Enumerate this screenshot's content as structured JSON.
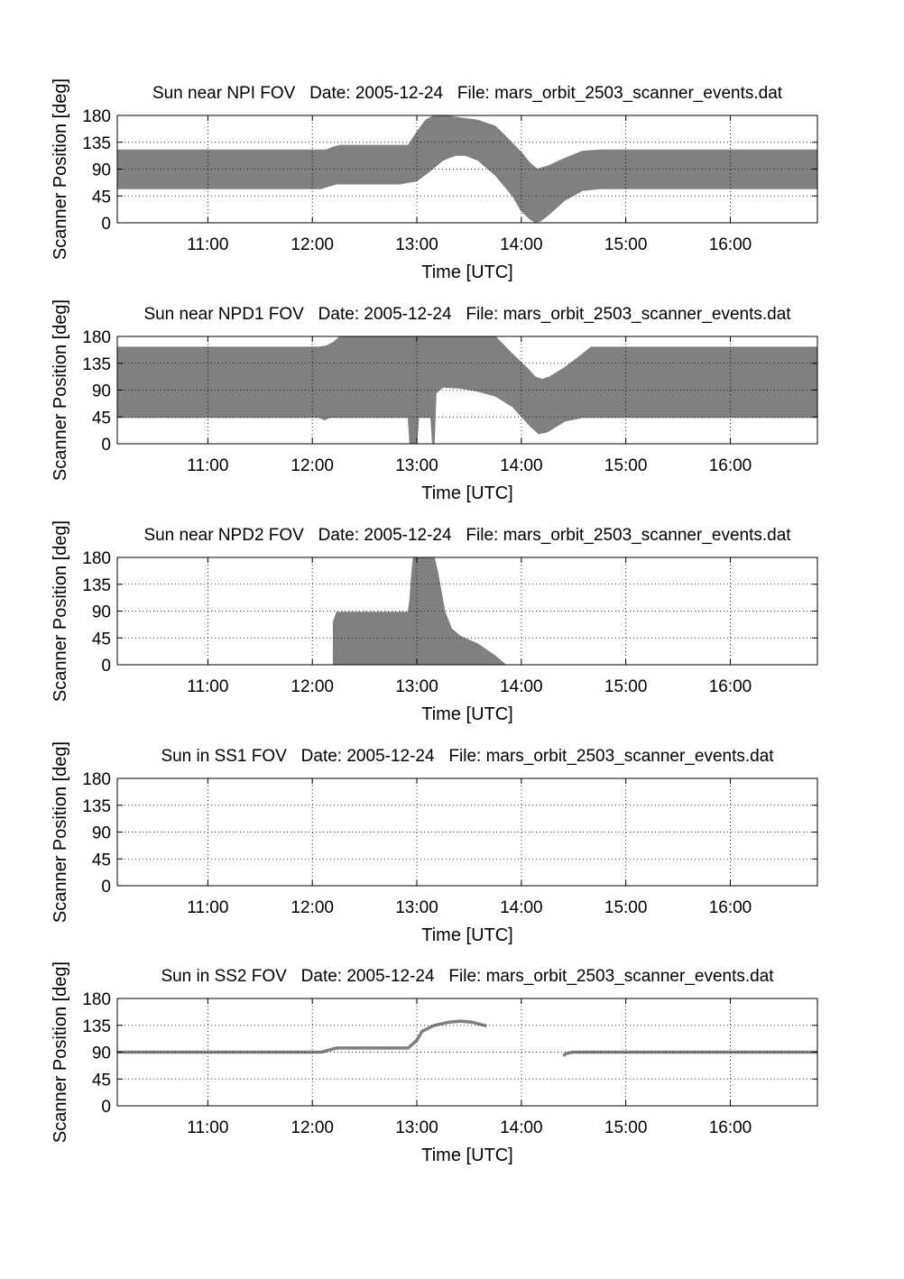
{
  "chart_data": [
    {
      "type": "area",
      "title": "Sun near NPI FOV   Date: 2005-12-24   File: mars_orbit_2503_scanner_events.dat",
      "xlabel": "Time [UTC]",
      "ylabel": "Scanner Position [deg]",
      "xlim": [
        "10:08",
        "16:50"
      ],
      "ylim": [
        0,
        180
      ],
      "xticks": [
        "11:00",
        "12:00",
        "13:00",
        "14:00",
        "15:00",
        "16:00"
      ],
      "yticks": [
        "0",
        "45",
        "90",
        "135",
        "180"
      ],
      "grid": true,
      "fill_color": "#808080",
      "bands": [
        {
          "upper": [
            [
              "10:08",
              122
            ],
            [
              "12:08",
              122
            ],
            [
              "12:12",
              127
            ],
            [
              "12:16",
              130
            ],
            [
              "12:55",
              130
            ],
            [
              "13:00",
              152
            ],
            [
              "13:05",
              172
            ],
            [
              "13:10",
              180
            ],
            [
              "13:20",
              178
            ],
            [
              "13:35",
              172
            ],
            [
              "13:45",
              162
            ],
            [
              "13:50",
              148
            ],
            [
              "14:00",
              118
            ],
            [
              "14:05",
              100
            ],
            [
              "14:09",
              90
            ],
            [
              "14:15",
              95
            ],
            [
              "14:25",
              108
            ],
            [
              "14:35",
              120
            ],
            [
              "14:45",
              122
            ],
            [
              "16:50",
              122
            ]
          ],
          "lower": [
            [
              "10:08",
              57
            ],
            [
              "12:05",
              57
            ],
            [
              "12:10",
              62
            ],
            [
              "12:14",
              65
            ],
            [
              "12:50",
              65
            ],
            [
              "13:00",
              70
            ],
            [
              "13:08",
              88
            ],
            [
              "13:15",
              105
            ],
            [
              "13:22",
              113
            ],
            [
              "13:28",
              113
            ],
            [
              "13:35",
              105
            ],
            [
              "13:45",
              80
            ],
            [
              "13:55",
              45
            ],
            [
              "14:00",
              20
            ],
            [
              "14:05",
              6
            ],
            [
              "14:08",
              1
            ],
            [
              "14:11",
              3
            ],
            [
              "14:15",
              12
            ],
            [
              "14:25",
              38
            ],
            [
              "14:35",
              54
            ],
            [
              "14:45",
              57
            ],
            [
              "16:50",
              57
            ]
          ]
        }
      ]
    },
    {
      "type": "area",
      "title": "Sun near NPD1 FOV   Date: 2005-12-24   File: mars_orbit_2503_scanner_events.dat",
      "xlabel": "Time [UTC]",
      "ylabel": "Scanner Position [deg]",
      "xlim": [
        "10:08",
        "16:50"
      ],
      "ylim": [
        0,
        180
      ],
      "xticks": [
        "11:00",
        "12:00",
        "13:00",
        "14:00",
        "15:00",
        "16:00"
      ],
      "yticks": [
        "0",
        "45",
        "90",
        "135",
        "180"
      ],
      "grid": true,
      "fill_color": "#808080",
      "bands": [
        {
          "upper": [
            [
              "10:08",
              162
            ],
            [
              "12:03",
              162
            ],
            [
              "12:08",
              164
            ],
            [
              "12:12",
              170
            ],
            [
              "12:16",
              180
            ],
            [
              "13:45",
              180
            ],
            [
              "13:55",
              150
            ],
            [
              "14:03",
              128
            ],
            [
              "14:08",
              112
            ],
            [
              "14:12",
              108
            ],
            [
              "14:16",
              112
            ],
            [
              "14:25",
              128
            ],
            [
              "14:35",
              150
            ],
            [
              "14:40",
              162
            ],
            [
              "16:50",
              162
            ]
          ],
          "lower": [
            [
              "10:08",
              44
            ],
            [
              "12:04",
              44
            ],
            [
              "12:07",
              40
            ],
            [
              "12:10",
              44
            ],
            [
              "12:55",
              44
            ],
            [
              "12:56",
              0
            ],
            [
              "13:00",
              0
            ],
            [
              "13:01",
              44
            ],
            [
              "13:08",
              44
            ],
            [
              "13:09",
              0
            ],
            [
              "13:10",
              0
            ],
            [
              "13:11",
              85
            ],
            [
              "13:15",
              95
            ],
            [
              "13:25",
              93
            ],
            [
              "13:35",
              88
            ],
            [
              "13:45",
              80
            ],
            [
              "13:55",
              62
            ],
            [
              "14:05",
              30
            ],
            [
              "14:10",
              17
            ],
            [
              "14:15",
              20
            ],
            [
              "14:25",
              38
            ],
            [
              "14:35",
              44
            ],
            [
              "16:50",
              44
            ]
          ]
        }
      ]
    },
    {
      "type": "area",
      "title": "Sun near NPD2 FOV   Date: 2005-12-24   File: mars_orbit_2503_scanner_events.dat",
      "xlabel": "Time [UTC]",
      "ylabel": "Scanner Position [deg]",
      "xlim": [
        "10:08",
        "16:50"
      ],
      "ylim": [
        0,
        180
      ],
      "xticks": [
        "11:00",
        "12:00",
        "13:00",
        "14:00",
        "15:00",
        "16:00"
      ],
      "yticks": [
        "0",
        "45",
        "90",
        "135",
        "180"
      ],
      "grid": true,
      "fill_color": "#808080",
      "bands": [
        {
          "upper": [
            [
              "12:12",
              0
            ],
            [
              "12:12",
              72
            ],
            [
              "12:14",
              88
            ],
            [
              "12:55",
              88
            ],
            [
              "12:56",
              110
            ],
            [
              "12:57",
              150
            ],
            [
              "12:58",
              180
            ],
            [
              "13:10",
              180
            ],
            [
              "13:12",
              155
            ],
            [
              "13:16",
              90
            ],
            [
              "13:20",
              60
            ],
            [
              "13:25",
              48
            ],
            [
              "13:35",
              35
            ],
            [
              "13:45",
              15
            ],
            [
              "13:51",
              0
            ]
          ],
          "lower": [
            [
              "12:12",
              0
            ],
            [
              "13:51",
              0
            ]
          ]
        }
      ]
    },
    {
      "type": "area",
      "title": "Sun in SS1 FOV   Date: 2005-12-24   File: mars_orbit_2503_scanner_events.dat",
      "xlabel": "Time [UTC]",
      "ylabel": "Scanner Position [deg]",
      "xlim": [
        "10:08",
        "16:50"
      ],
      "ylim": [
        0,
        180
      ],
      "xticks": [
        "11:00",
        "12:00",
        "13:00",
        "14:00",
        "15:00",
        "16:00"
      ],
      "yticks": [
        "0",
        "45",
        "90",
        "135",
        "180"
      ],
      "grid": true,
      "fill_color": "#808080",
      "bands": []
    },
    {
      "type": "line",
      "title": "Sun in SS2 FOV   Date: 2005-12-24   File: mars_orbit_2503_scanner_events.dat",
      "xlabel": "Time [UTC]",
      "ylabel": "Scanner Position [deg]",
      "xlim": [
        "10:08",
        "16:50"
      ],
      "ylim": [
        0,
        180
      ],
      "xticks": [
        "11:00",
        "12:00",
        "13:00",
        "14:00",
        "15:00",
        "16:00"
      ],
      "yticks": [
        "0",
        "45",
        "90",
        "135",
        "180"
      ],
      "grid": true,
      "fill_color": "#808080",
      "lines": [
        [
          [
            "10:08",
            90
          ],
          [
            "12:05",
            90
          ],
          [
            "12:10",
            94
          ],
          [
            "12:14",
            97
          ],
          [
            "12:55",
            97
          ],
          [
            "13:00",
            110
          ],
          [
            "13:03",
            125
          ],
          [
            "13:10",
            135
          ],
          [
            "13:18",
            140
          ],
          [
            "13:25",
            142
          ],
          [
            "13:32",
            140
          ],
          [
            "13:40",
            134
          ]
        ],
        [
          [
            "14:24",
            84
          ],
          [
            "14:26",
            88
          ],
          [
            "14:30",
            90
          ],
          [
            "16:50",
            90
          ]
        ]
      ]
    }
  ]
}
